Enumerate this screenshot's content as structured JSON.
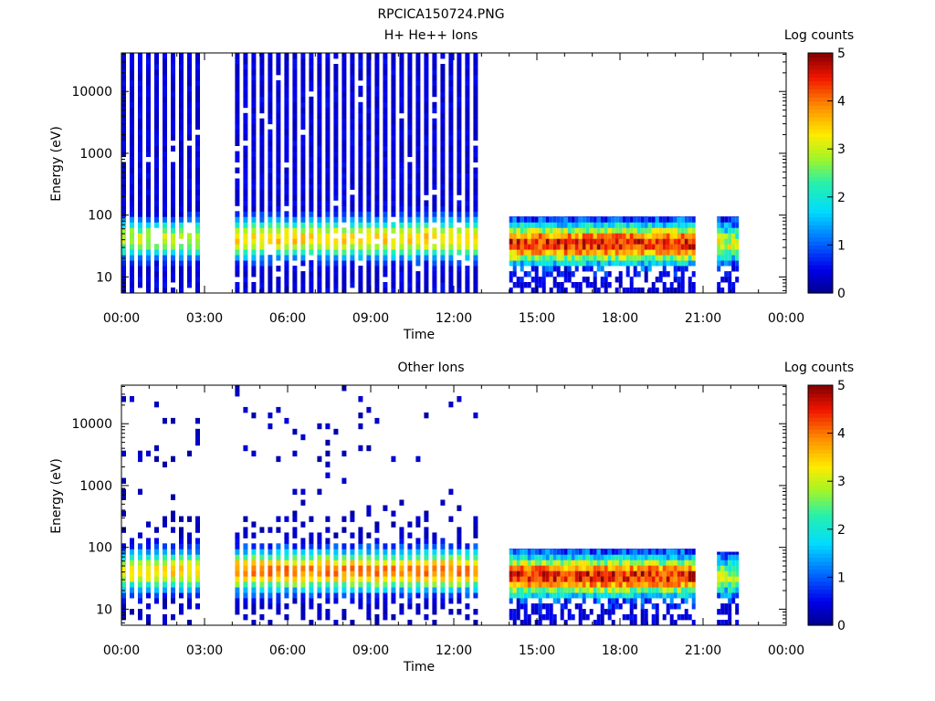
{
  "figure_title": "RPCICA150724.PNG",
  "chart_data": [
    {
      "type": "heatmap",
      "title": "H+ He++ Ions",
      "xlabel": "Time",
      "ylabel": "Energy (eV)",
      "x_tick_labels": [
        "00:00",
        "03:00",
        "06:00",
        "09:00",
        "12:00",
        "15:00",
        "18:00",
        "21:00",
        "00:00"
      ],
      "x_range_hours": [
        0,
        24
      ],
      "y_scale": "log",
      "y_tick_labels": [
        "10",
        "100",
        "1000",
        "10000"
      ],
      "y_range_eV": [
        5.5,
        42000
      ],
      "colorbar": {
        "label": "Log counts",
        "ticks": [
          "0",
          "1",
          "2",
          "3",
          "4",
          "5"
        ],
        "range": [
          0,
          5
        ],
        "colormap": "rainbow"
      },
      "data_intervals_hours": [
        {
          "start": 0.0,
          "end": 2.7,
          "mode": "striped",
          "energy_range_eV": [
            5.5,
            42000
          ],
          "peak_energy_eV": [
            25,
            70
          ],
          "peak_log_counts": 3.0
        },
        {
          "start": 4.1,
          "end": 12.95,
          "mode": "striped",
          "energy_range_eV": [
            5.5,
            42000
          ],
          "peak_energy_eV": [
            25,
            70
          ],
          "peak_log_counts": 3.5
        },
        {
          "start": 14.0,
          "end": 20.7,
          "mode": "continuous",
          "energy_range_eV": [
            5.5,
            95
          ],
          "peak_energy_eV": [
            20,
            60
          ],
          "peak_log_counts": 4.5
        },
        {
          "start": 21.5,
          "end": 22.2,
          "mode": "continuous",
          "energy_range_eV": [
            5.5,
            95
          ],
          "peak_energy_eV": [
            20,
            60
          ],
          "peak_log_counts": 3.0
        }
      ]
    },
    {
      "type": "heatmap",
      "title": "Other Ions",
      "xlabel": "Time",
      "ylabel": "Energy (eV)",
      "x_tick_labels": [
        "00:00",
        "03:00",
        "06:00",
        "09:00",
        "12:00",
        "15:00",
        "18:00",
        "21:00",
        "00:00"
      ],
      "x_range_hours": [
        0,
        24
      ],
      "y_scale": "log",
      "y_tick_labels": [
        "10",
        "100",
        "1000",
        "10000"
      ],
      "y_range_eV": [
        5.5,
        42000
      ],
      "colorbar": {
        "label": "Log counts",
        "ticks": [
          "0",
          "1",
          "2",
          "3",
          "4",
          "5"
        ],
        "range": [
          0,
          5
        ],
        "colormap": "rainbow"
      },
      "data_intervals_hours": [
        {
          "start": 0.0,
          "end": 2.7,
          "mode": "sparse",
          "energy_range_eV": [
            5.5,
            42000
          ],
          "peak_energy_eV": [
            25,
            70
          ],
          "peak_log_counts": 3.5
        },
        {
          "start": 4.1,
          "end": 12.95,
          "mode": "sparse",
          "energy_range_eV": [
            5.5,
            42000
          ],
          "peak_energy_eV": [
            25,
            70
          ],
          "peak_log_counts": 4.0
        },
        {
          "start": 14.0,
          "end": 20.7,
          "mode": "continuous",
          "energy_range_eV": [
            5.5,
            95
          ],
          "peak_energy_eV": [
            20,
            60
          ],
          "peak_log_counts": 4.5
        },
        {
          "start": 21.5,
          "end": 22.2,
          "mode": "continuous",
          "energy_range_eV": [
            5.5,
            85
          ],
          "peak_energy_eV": [
            20,
            60
          ],
          "peak_log_counts": 3.0
        }
      ]
    }
  ]
}
